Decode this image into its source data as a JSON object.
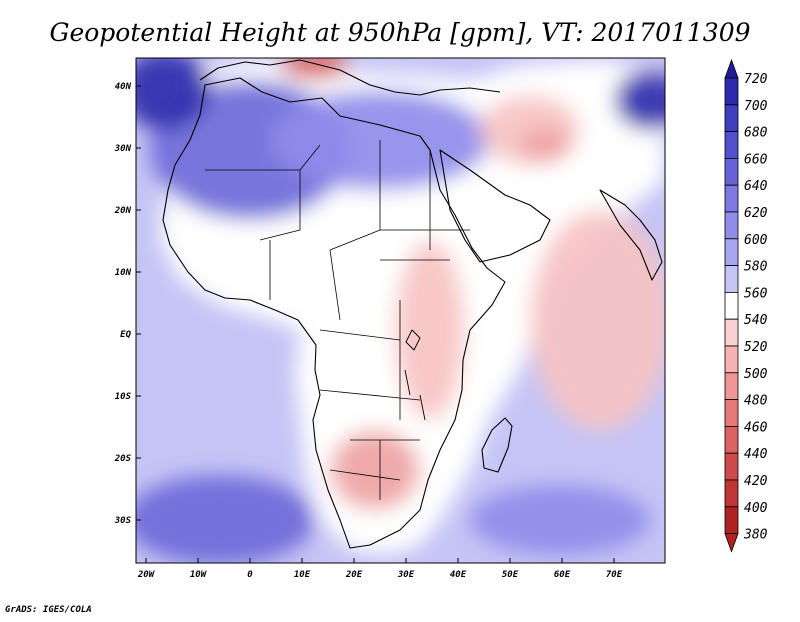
{
  "title": "Geopotential Height at 950hPa [gpm], VT: 2017011309",
  "credit": "GrADS: IGES/COLA",
  "axes": {
    "lon_labels": [
      "20W",
      "10W",
      "0",
      "10E",
      "20E",
      "30E",
      "40E",
      "50E",
      "60E",
      "70E"
    ],
    "lat_labels": [
      "40N",
      "30N",
      "20N",
      "10N",
      "EQ",
      "10S",
      "20S",
      "30S"
    ]
  },
  "colorbar": {
    "levels": [
      "720",
      "700",
      "680",
      "660",
      "640",
      "620",
      "600",
      "580",
      "560",
      "540",
      "520",
      "500",
      "480",
      "460",
      "440",
      "420",
      "400",
      "380"
    ],
    "colors": [
      "#1f1b9c",
      "#2e2ab0",
      "#3f3dc0",
      "#5250cc",
      "#6764d8",
      "#7c79e2",
      "#918eea",
      "#a8a6f0",
      "#c5c4f6",
      "#ffffff",
      "#fbd0d0",
      "#f6b2b2",
      "#ef9595",
      "#e67a7a",
      "#dc6262",
      "#cf4b4b",
      "#c03636",
      "#b02222"
    ]
  },
  "map_colors": {
    "ocean_base": "#c6c4f5",
    "land_base": "#ffffff",
    "north_high": "#6d6ad9",
    "very_high": "#2f2cad",
    "high": "#8f8cea",
    "warm_low": "#f7c3c3",
    "warm_mid": "#efa3a3",
    "hot_spot": "#d85757"
  }
}
